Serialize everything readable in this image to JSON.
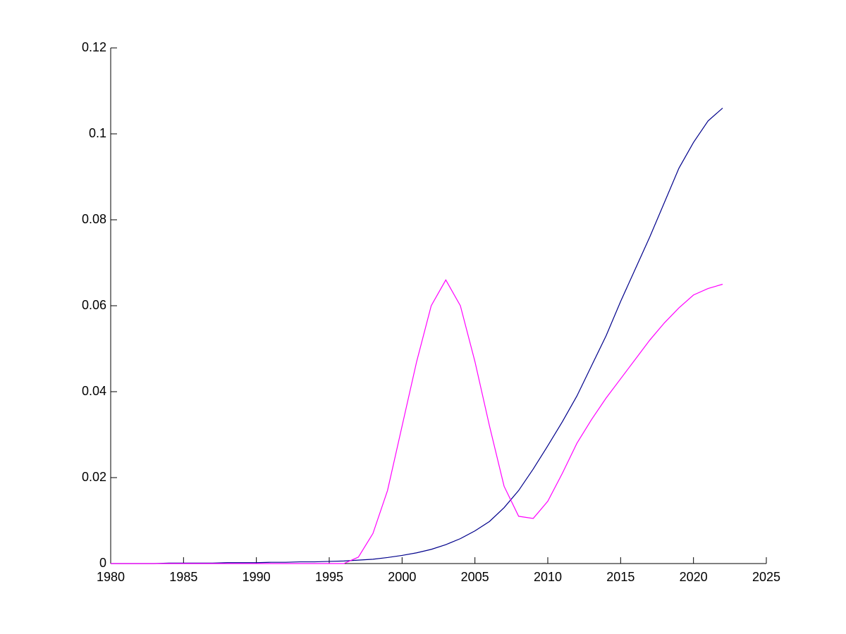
{
  "chart_data": {
    "type": "line",
    "x": [
      1980,
      1981,
      1982,
      1983,
      1984,
      1985,
      1986,
      1987,
      1988,
      1989,
      1990,
      1991,
      1992,
      1993,
      1994,
      1995,
      1996,
      1997,
      1998,
      1999,
      2000,
      2001,
      2002,
      2003,
      2004,
      2005,
      2006,
      2007,
      2008,
      2009,
      2010,
      2011,
      2012,
      2013,
      2014,
      2015,
      2016,
      2017,
      2018,
      2019,
      2020,
      2021,
      2022
    ],
    "series": [
      {
        "color": "#00008b",
        "values": [
          0,
          0,
          0,
          0,
          0.0001,
          0.0001,
          0.0001,
          0.0001,
          0.0002,
          0.0002,
          0.0002,
          0.0003,
          0.0003,
          0.0004,
          0.0004,
          0.0005,
          0.0006,
          0.0008,
          0.001,
          0.0014,
          0.0019,
          0.0025,
          0.0033,
          0.0044,
          0.0058,
          0.0076,
          0.0098,
          0.013,
          0.017,
          0.022,
          0.0274,
          0.033,
          0.039,
          0.046,
          0.053,
          0.061,
          0.0685,
          0.076,
          0.084,
          0.092,
          0.098,
          0.103,
          0.106
        ]
      },
      {
        "color": "#ff00ff",
        "values": [
          0,
          0,
          0,
          0,
          0,
          0,
          0,
          0,
          0,
          0,
          0,
          0,
          0,
          0,
          0,
          0,
          0,
          0.0015,
          0.007,
          0.017,
          0.032,
          0.047,
          0.06,
          0.066,
          0.06,
          0.047,
          0.032,
          0.018,
          0.011,
          0.0105,
          0.0145,
          0.021,
          0.028,
          0.0335,
          0.0385,
          0.043,
          0.0475,
          0.052,
          0.056,
          0.0595,
          0.0625,
          0.064,
          0.065
        ]
      }
    ],
    "xlim": [
      1980,
      2025
    ],
    "xticks": [
      1980,
      1985,
      1990,
      1995,
      2000,
      2005,
      2010,
      2015,
      2020,
      2025
    ],
    "ylim": [
      0,
      0.12
    ],
    "yticks": [
      0,
      0.02,
      0.04,
      0.06,
      0.08,
      0.1,
      0.12
    ]
  }
}
